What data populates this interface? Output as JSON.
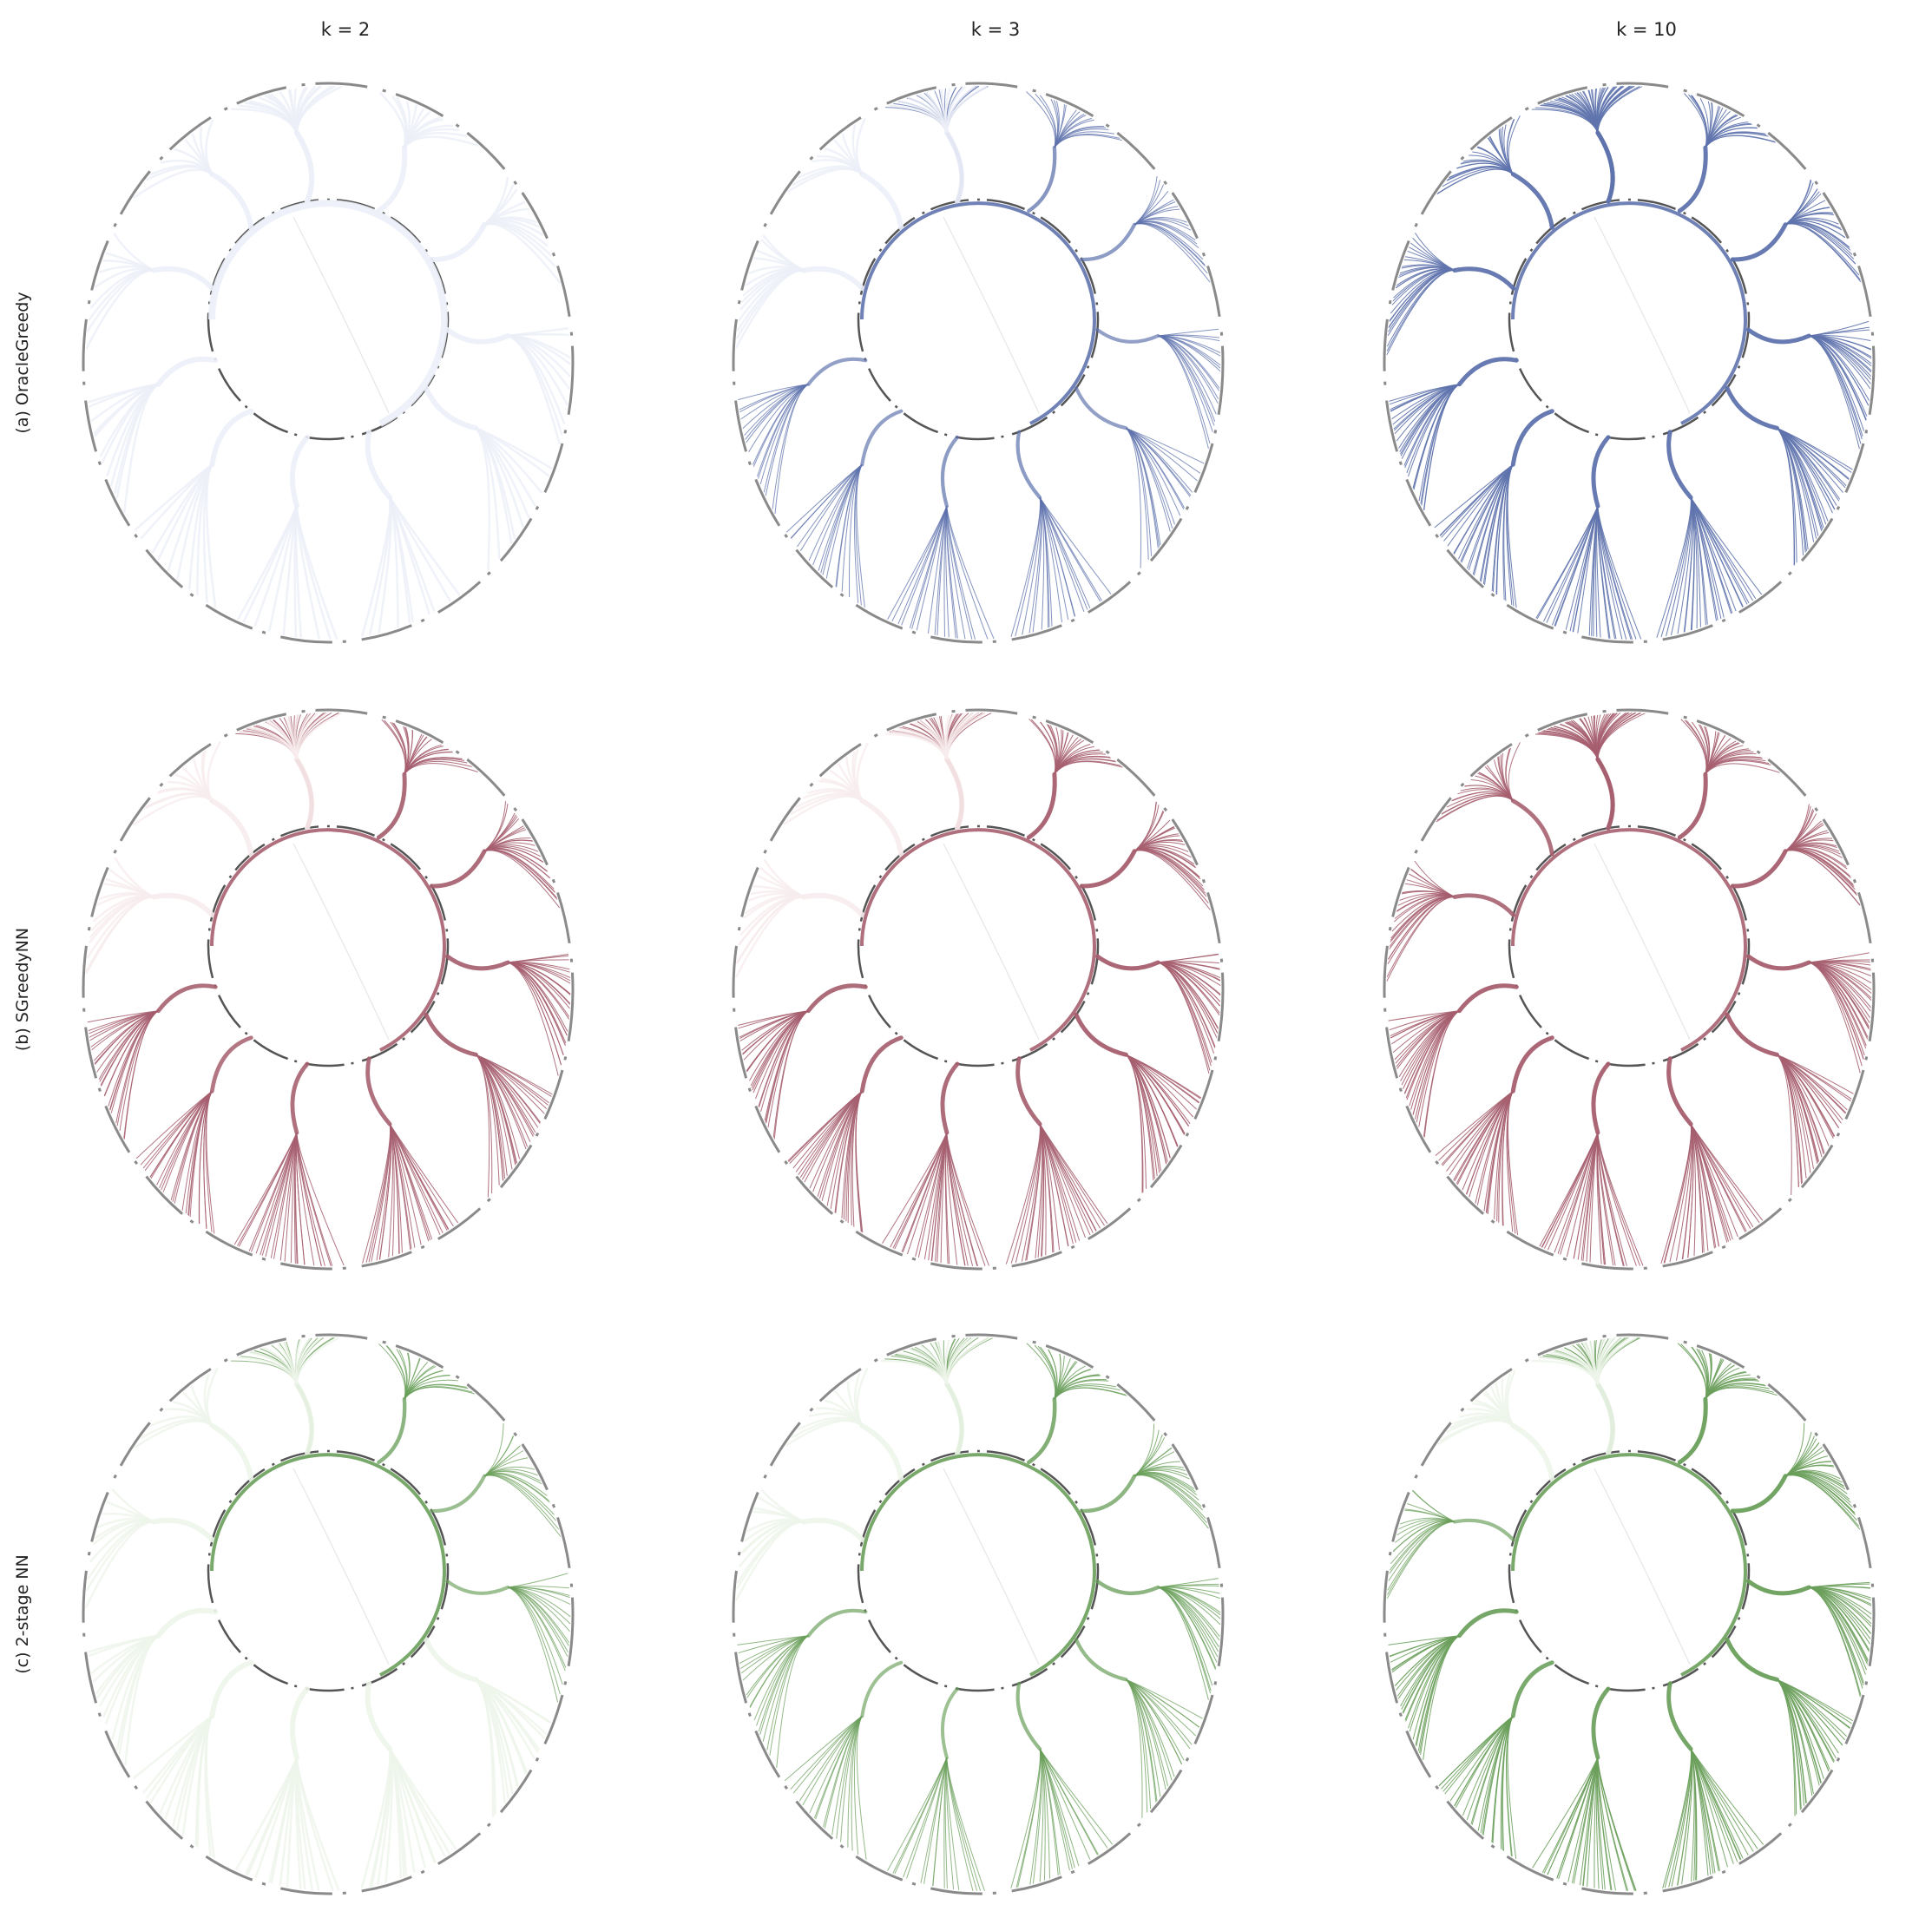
{
  "columns": [
    {
      "label": "k = 2",
      "k": 2
    },
    {
      "label": "k = 3",
      "k": 3
    },
    {
      "label": "k = 10",
      "k": 10
    }
  ],
  "rows": [
    {
      "label": "(a) OracleGreedy",
      "color": "#5f73ad",
      "faint": "#eceff8"
    },
    {
      "label": "(b) SGreedyNN",
      "color": "#a65f6f",
      "faint": "#f8eced"
    },
    {
      "label": "(c) 2-stage NN",
      "color": "#6a9f5b",
      "faint": "#edf5ea"
    }
  ],
  "strength": [
    [
      [
        0.25,
        0.3,
        0.25,
        0.2,
        0.2,
        0.2,
        0.2,
        0.2,
        0.25,
        0.15,
        0.15,
        0.15
      ],
      [
        0.6,
        0.65,
        0.6,
        0.55,
        0.55,
        0.6,
        0.6,
        0.55,
        0.55,
        0.3,
        0.2,
        0.2
      ],
      [
        1.0,
        1.0,
        1.0,
        1.0,
        1.0,
        1.0,
        1.0,
        1.0,
        1.0,
        1.0,
        1.0,
        1.0
      ]
    ],
    [
      [
        0.95,
        0.95,
        0.95,
        0.95,
        0.95,
        0.9,
        0.9,
        0.85,
        0.9,
        0.3,
        0.25,
        0.25
      ],
      [
        1.0,
        1.0,
        1.0,
        1.0,
        1.0,
        0.95,
        0.95,
        0.95,
        0.95,
        0.35,
        0.3,
        0.3
      ],
      [
        1.0,
        1.0,
        1.0,
        1.0,
        1.0,
        1.0,
        1.0,
        1.0,
        1.0,
        0.9,
        0.9,
        0.9
      ]
    ],
    [
      [
        0.55,
        0.7,
        0.55,
        0.5,
        0.45,
        0.4,
        0.35,
        0.3,
        0.3,
        0.2,
        0.15,
        0.15
      ],
      [
        0.75,
        0.8,
        0.7,
        0.7,
        0.6,
        0.6,
        0.5,
        0.5,
        0.55,
        0.25,
        0.2,
        0.2
      ],
      [
        1.0,
        1.0,
        1.0,
        1.0,
        1.0,
        0.95,
        0.95,
        0.9,
        0.95,
        0.55,
        0.45,
        0.4
      ]
    ]
  ]
}
